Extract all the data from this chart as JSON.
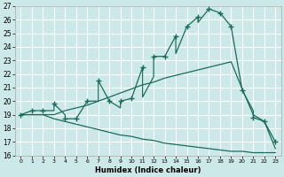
{
  "xlabel": "Humidex (Indice chaleur)",
  "bg_color": "#cce8e8",
  "grid_color": "#b8dede",
  "line_color": "#1a6b5a",
  "xlim_min": -0.5,
  "xlim_max": 23.5,
  "ylim_min": 16,
  "ylim_max": 27,
  "xticks": [
    0,
    1,
    2,
    3,
    4,
    5,
    6,
    7,
    8,
    9,
    10,
    11,
    12,
    13,
    14,
    15,
    16,
    17,
    18,
    19,
    20,
    21,
    22,
    23
  ],
  "yticks": [
    16,
    17,
    18,
    19,
    20,
    21,
    22,
    23,
    24,
    25,
    26,
    27
  ],
  "lower_x": [
    0,
    1,
    2,
    3,
    4,
    5,
    6,
    7,
    8,
    9,
    10,
    11,
    12,
    13,
    14,
    15,
    16,
    17,
    18,
    19,
    20,
    21,
    22,
    23
  ],
  "lower_y": [
    19.0,
    19.0,
    19.0,
    18.7,
    18.5,
    18.3,
    18.1,
    17.9,
    17.7,
    17.5,
    17.4,
    17.2,
    17.1,
    16.9,
    16.8,
    16.7,
    16.6,
    16.5,
    16.4,
    16.3,
    16.3,
    16.2,
    16.2,
    16.2
  ],
  "upper_x": [
    0,
    1,
    2,
    3,
    4,
    5,
    6,
    7,
    8,
    9,
    10,
    11,
    12,
    13,
    14,
    15,
    16,
    17,
    18,
    19,
    20,
    21,
    22,
    23
  ],
  "upper_y": [
    19.0,
    19.0,
    19.0,
    19.0,
    19.3,
    19.5,
    19.7,
    20.0,
    20.3,
    20.6,
    20.9,
    21.2,
    21.4,
    21.7,
    21.9,
    22.1,
    22.3,
    22.5,
    22.7,
    22.9,
    20.9,
    19.0,
    18.5,
    16.5
  ],
  "main_x": [
    0,
    1,
    2,
    3,
    3,
    4,
    4,
    5,
    6,
    7,
    7,
    8,
    9,
    9,
    10,
    11,
    11,
    12,
    12,
    13,
    14,
    14,
    15,
    16,
    16,
    17,
    18,
    19,
    20,
    21,
    21,
    22,
    23
  ],
  "main_y": [
    19.0,
    19.3,
    19.3,
    19.3,
    19.8,
    19.0,
    18.7,
    18.7,
    20.0,
    20.0,
    21.5,
    20.0,
    19.5,
    20.0,
    20.2,
    22.5,
    20.3,
    21.8,
    23.3,
    23.3,
    24.8,
    23.5,
    25.5,
    26.2,
    25.8,
    26.8,
    26.5,
    25.5,
    20.8,
    19.3,
    18.8,
    18.5,
    17.0
  ],
  "marker_x": [
    0,
    1,
    2,
    3,
    4,
    5,
    6,
    7,
    8,
    9,
    10,
    11,
    12,
    13,
    14,
    15,
    16,
    17,
    18,
    19,
    20,
    21,
    22,
    23
  ],
  "marker_y": [
    19.0,
    19.3,
    19.3,
    19.8,
    18.7,
    18.7,
    20.0,
    21.5,
    20.0,
    20.0,
    20.2,
    22.5,
    23.3,
    23.3,
    24.8,
    25.5,
    26.2,
    26.8,
    26.5,
    25.5,
    20.8,
    18.8,
    18.5,
    17.0
  ]
}
